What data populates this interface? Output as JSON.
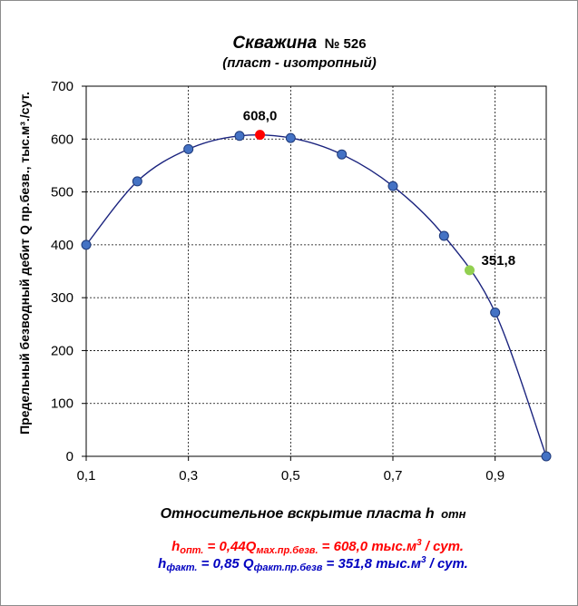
{
  "chart_data": {
    "type": "scatter",
    "title": "Скважина",
    "title_number": "№ 526",
    "subtitle": "(пласт - изотропный)",
    "xlabel_main": "Относительное  вскрытие  пласта  h",
    "xlabel_sub": "отн",
    "ylabel": "Предельный безводный дебит Q пр.безв.,  тыс.м³./сут.",
    "xlim": [
      0.1,
      1.0
    ],
    "ylim": [
      0,
      700
    ],
    "x_ticks": [
      "0,1",
      "0,3",
      "0,5",
      "0,7",
      "0,9"
    ],
    "x_tick_values": [
      0.1,
      0.3,
      0.5,
      0.7,
      0.9
    ],
    "y_ticks": [
      "0",
      "100",
      "200",
      "300",
      "400",
      "500",
      "600",
      "700"
    ],
    "y_tick_values": [
      0,
      100,
      200,
      300,
      400,
      500,
      600,
      700
    ],
    "grid": true,
    "colors": {
      "curve": "#1a237e",
      "marker": "#4472c4",
      "marker_edge": "#1f3a7a",
      "optimum": "#ff0000",
      "actual": "#92d050"
    },
    "series": [
      {
        "x": [
          0.1,
          0.2,
          0.3,
          0.4,
          0.5,
          0.6,
          0.7,
          0.8,
          0.9,
          1.0
        ],
        "y": [
          400,
          520,
          581,
          606,
          602,
          571,
          511,
          417,
          272,
          0
        ]
      }
    ],
    "highlights": [
      {
        "x": 0.44,
        "y": 608,
        "label": "608,0",
        "color": "#ff0000"
      },
      {
        "x": 0.85,
        "y": 352,
        "label": "351,8",
        "color": "#92d050"
      }
    ]
  },
  "formulas": {
    "line1": {
      "h": "h",
      "h_sub": "опт.",
      "eq": " =  0,44Q",
      "q_sub": "мах.пр.безв.",
      "rest": " = 608,0 тыс.м",
      "sup": "3",
      "tail": " / сут."
    },
    "line2": {
      "h": "h",
      "h_sub": "факт.",
      "eq": " = 0,85 Q",
      "q_sub": "факт.пр.безв",
      "rest": " = 351,8 тыс.м",
      "sup": "3",
      "tail": " / сут."
    }
  }
}
